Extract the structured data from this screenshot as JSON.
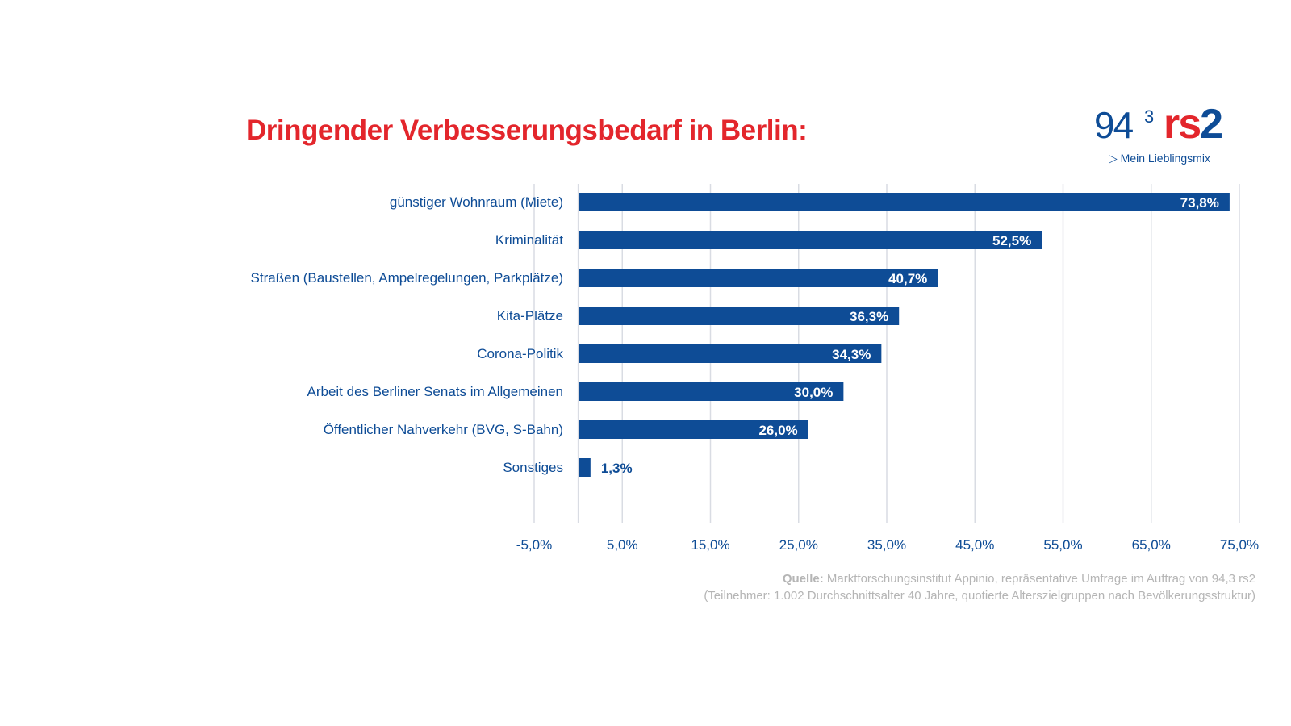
{
  "title": "Dringender Verbesserungsbedarf in Berlin:",
  "logo": {
    "number": "94",
    "superscript": "3",
    "brand_r": "rs",
    "brand_2": "2",
    "tagline": "Mein Lieblingsmix"
  },
  "source": {
    "label": "Quelle:",
    "text": " Marktforschungsinstitut Appinio, repräsentative Umfrage im Auftrag von 94,3 rs2",
    "note": "(Teilnehmer: 1.002 Durchschnittsalter 40 Jahre, quotierte Alterszielgruppen nach Bevölkerungsstruktur)"
  },
  "colors": {
    "bar": "#0e4c96",
    "title": "#e3262c",
    "grid": "#d9dce3"
  },
  "chart_data": {
    "type": "bar",
    "orientation": "horizontal",
    "categories": [
      "günstiger Wohnraum (Miete)",
      "Kriminalität",
      "Straßen (Baustellen, Ampelregelungen, Parkplätze)",
      "Kita-Plätze",
      "Corona-Politik",
      "Arbeit des Berliner Senats im Allgemeinen",
      "Öffentlicher Nahverkehr (BVG, S-Bahn)",
      "Sonstiges"
    ],
    "values": [
      73.8,
      52.5,
      40.7,
      36.3,
      34.3,
      30.0,
      26.0,
      1.3
    ],
    "data_labels": [
      "73,8%",
      "52,5%",
      "40,7%",
      "36,3%",
      "34,3%",
      "30,0%",
      "26,0%",
      "1,3%"
    ],
    "xlim": [
      -5,
      75
    ],
    "xticks": [
      -5,
      5,
      15,
      25,
      35,
      45,
      55,
      65,
      75
    ],
    "xtick_labels": [
      "-5,0%",
      "5,0%",
      "15,0%",
      "25,0%",
      "35,0%",
      "45,0%",
      "55,0%",
      "65,0%",
      "75,0%"
    ],
    "grid": true
  }
}
